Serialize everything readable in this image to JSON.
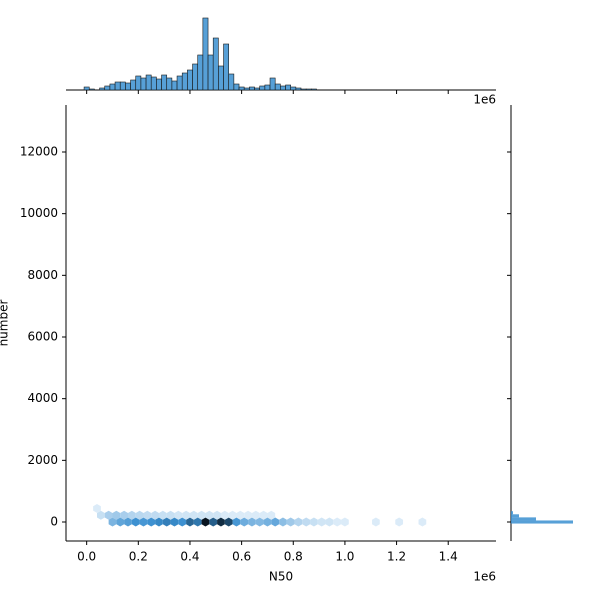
{
  "chart_data": {
    "type": "hexbin",
    "xlabel": "N50",
    "ylabel": "number",
    "x_offset_label": "1e6",
    "xlim": [
      -0.08,
      1.585
    ],
    "ylim": [
      -616,
      13524
    ],
    "xticks": [
      {
        "value": 0,
        "label": "0.0"
      },
      0.2,
      0.4,
      0.6,
      0.8,
      {
        "value": 1,
        "label": "1.0"
      },
      1.2,
      1.4
    ],
    "yticks": [
      0,
      2000,
      4000,
      6000,
      8000,
      10000,
      12000
    ],
    "color": "#3a8fd0",
    "hexbins": {
      "x": [
        0.1,
        0.13,
        0.16,
        0.19,
        0.22,
        0.25,
        0.28,
        0.31,
        0.34,
        0.37,
        0.4,
        0.43,
        0.46,
        0.49,
        0.52,
        0.55,
        0.58,
        0.61,
        0.64,
        0.67,
        0.7,
        0.73,
        0.76,
        0.79,
        0.82,
        0.85,
        0.88,
        0.91,
        0.94,
        0.97,
        1.0,
        1.12,
        1.21,
        1.3,
        0.055,
        0.085,
        0.115,
        0.145,
        0.175,
        0.205,
        0.235,
        0.265,
        0.295,
        0.325,
        0.355,
        0.385,
        0.415,
        0.445,
        0.475,
        0.505,
        0.535,
        0.565,
        0.595,
        0.625,
        0.655,
        0.685,
        0.715,
        0.04
      ],
      "y": [
        0,
        0,
        0,
        0,
        0,
        0,
        0,
        0,
        0,
        0,
        0,
        0,
        0,
        0,
        0,
        0,
        0,
        0,
        0,
        0,
        0,
        0,
        0,
        0,
        0,
        0,
        0,
        0,
        0,
        0,
        0,
        0,
        0,
        0,
        220,
        220,
        220,
        220,
        220,
        220,
        220,
        220,
        220,
        220,
        220,
        220,
        220,
        220,
        220,
        220,
        220,
        220,
        220,
        220,
        220,
        220,
        220,
        440
      ],
      "counts": [
        20,
        30,
        35,
        45,
        40,
        45,
        50,
        55,
        50,
        45,
        70,
        60,
        130,
        75,
        110,
        90,
        40,
        25,
        20,
        18,
        22,
        28,
        15,
        10,
        6,
        4,
        3,
        2,
        2,
        1,
        1,
        1,
        1,
        1,
        3,
        8,
        10,
        8,
        6,
        5,
        4,
        4,
        3,
        3,
        2,
        2,
        2,
        2,
        2,
        2,
        1,
        1,
        1,
        1,
        1,
        1,
        1,
        1
      ]
    },
    "marginal_x": {
      "bins": [
        -0.01,
        0.01,
        0.03,
        0.05,
        0.07,
        0.09,
        0.11,
        0.13,
        0.15,
        0.17,
        0.19,
        0.21,
        0.23,
        0.25,
        0.27,
        0.29,
        0.31,
        0.33,
        0.35,
        0.37,
        0.39,
        0.41,
        0.43,
        0.45,
        0.47,
        0.49,
        0.51,
        0.53,
        0.55,
        0.57,
        0.59,
        0.61,
        0.63,
        0.65,
        0.67,
        0.69,
        0.71,
        0.73,
        0.75,
        0.77,
        0.79,
        0.81,
        0.83,
        0.85,
        0.87,
        0.89,
        0.91,
        0.93
      ],
      "counts": [
        3,
        1,
        0,
        2,
        4,
        6,
        8,
        8,
        7,
        10,
        14,
        12,
        15,
        13,
        11,
        15,
        12,
        9,
        14,
        17,
        20,
        26,
        35,
        72,
        35,
        52,
        24,
        46,
        16,
        6,
        3,
        2,
        3,
        2,
        4,
        5,
        12,
        6,
        4,
        5,
        3,
        2,
        1,
        1,
        1,
        0,
        0
      ]
    },
    "marginal_y": {
      "bins": [
        -50,
        50,
        150,
        250,
        350
      ],
      "counts": [
        62,
        25,
        8,
        2
      ]
    }
  }
}
